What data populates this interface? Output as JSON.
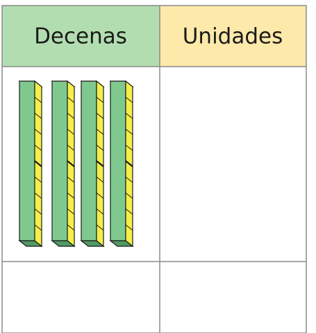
{
  "table": {
    "header": [
      "Decenas",
      "Unidades"
    ]
  }
}
